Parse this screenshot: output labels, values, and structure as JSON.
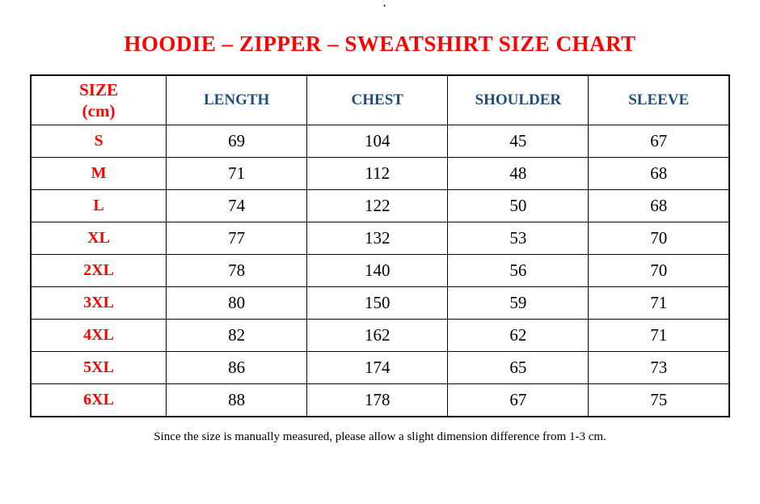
{
  "page": {
    "top_mark": "."
  },
  "table_header": {
    "size_line1": "SIZE",
    "size_line2": "(cm)"
  },
  "chart_data": {
    "type": "table",
    "title": "HOODIE – ZIPPER – SWEATSHIRT SIZE CHART",
    "columns": [
      "SIZE (cm)",
      "LENGTH",
      "CHEST",
      "SHOULDER",
      "SLEEVE"
    ],
    "rows": [
      [
        "S",
        "69",
        "104",
        "45",
        "67"
      ],
      [
        "M",
        "71",
        "112",
        "48",
        "68"
      ],
      [
        "L",
        "74",
        "122",
        "50",
        "68"
      ],
      [
        "XL",
        "77",
        "132",
        "53",
        "70"
      ],
      [
        "2XL",
        "78",
        "140",
        "56",
        "70"
      ],
      [
        "3XL",
        "80",
        "150",
        "59",
        "71"
      ],
      [
        "4XL",
        "82",
        "162",
        "62",
        "71"
      ],
      [
        "5XL",
        "86",
        "174",
        "65",
        "73"
      ],
      [
        "6XL",
        "88",
        "178",
        "67",
        "75"
      ]
    ],
    "note": "Since the size is manually measured, please allow a slight dimension difference from 1-3 cm.",
    "layout_hints": {
      "grid": true,
      "units": "cm"
    }
  },
  "colors": {
    "title_red": "#ff0000",
    "size_red": "#ff0000",
    "header_blue": "#1f4e79",
    "body_text": "#000000",
    "border": "#000000"
  }
}
